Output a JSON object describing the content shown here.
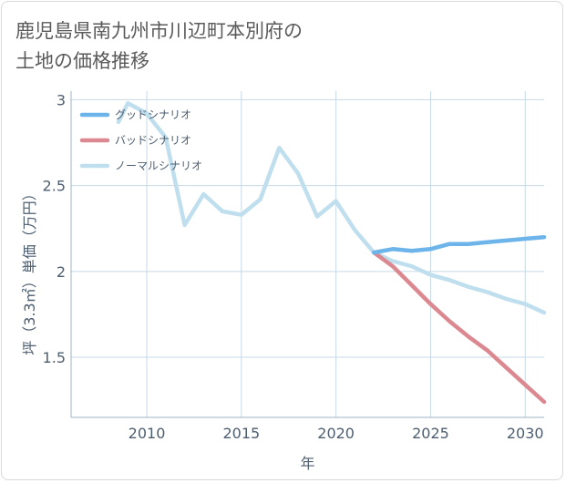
{
  "chart_data": {
    "type": "line",
    "title": "鹿児島県南九州市川辺町本別府の\n土地の価格推移",
    "xlabel": "年",
    "ylabel": "坪（3.3㎡）単価（万円）",
    "xlim": [
      2006,
      2031
    ],
    "ylim": [
      1.15,
      3.05
    ],
    "xticks": [
      2010,
      2015,
      2020,
      2025,
      2030
    ],
    "yticks": [
      1.5,
      2,
      2.5,
      3
    ],
    "yticklabels": [
      "1.5",
      "2",
      "2.5",
      "3"
    ],
    "legend_position": "top-left",
    "series": [
      {
        "name": "グッドシナリオ",
        "color": "#6cb4ea",
        "x": [
          2022,
          2023,
          2024,
          2025,
          2026,
          2027,
          2028,
          2029,
          2030,
          2031
        ],
        "y": [
          2.11,
          2.13,
          2.12,
          2.13,
          2.16,
          2.16,
          2.17,
          2.18,
          2.19,
          2.2
        ]
      },
      {
        "name": "バッドシナリオ",
        "color": "#dc8890",
        "x": [
          2022,
          2023,
          2024,
          2025,
          2026,
          2027,
          2028,
          2029,
          2030,
          2031
        ],
        "y": [
          2.11,
          2.03,
          1.92,
          1.81,
          1.71,
          1.62,
          1.54,
          1.44,
          1.34,
          1.24
        ]
      },
      {
        "name": "ノーマルシナリオ",
        "color": "#c0dfee",
        "x": [
          2008.5,
          2009,
          2010,
          2011,
          2012,
          2013,
          2014,
          2015,
          2016,
          2017,
          2018,
          2019,
          2020,
          2021,
          2022,
          2023,
          2024,
          2025,
          2026,
          2027,
          2028,
          2029,
          2030,
          2031
        ],
        "y": [
          2.87,
          2.98,
          2.92,
          2.78,
          2.27,
          2.45,
          2.35,
          2.33,
          2.42,
          2.72,
          2.57,
          2.32,
          2.41,
          2.24,
          2.11,
          2.06,
          2.03,
          1.98,
          1.95,
          1.91,
          1.88,
          1.84,
          1.81,
          1.76
        ]
      }
    ]
  }
}
